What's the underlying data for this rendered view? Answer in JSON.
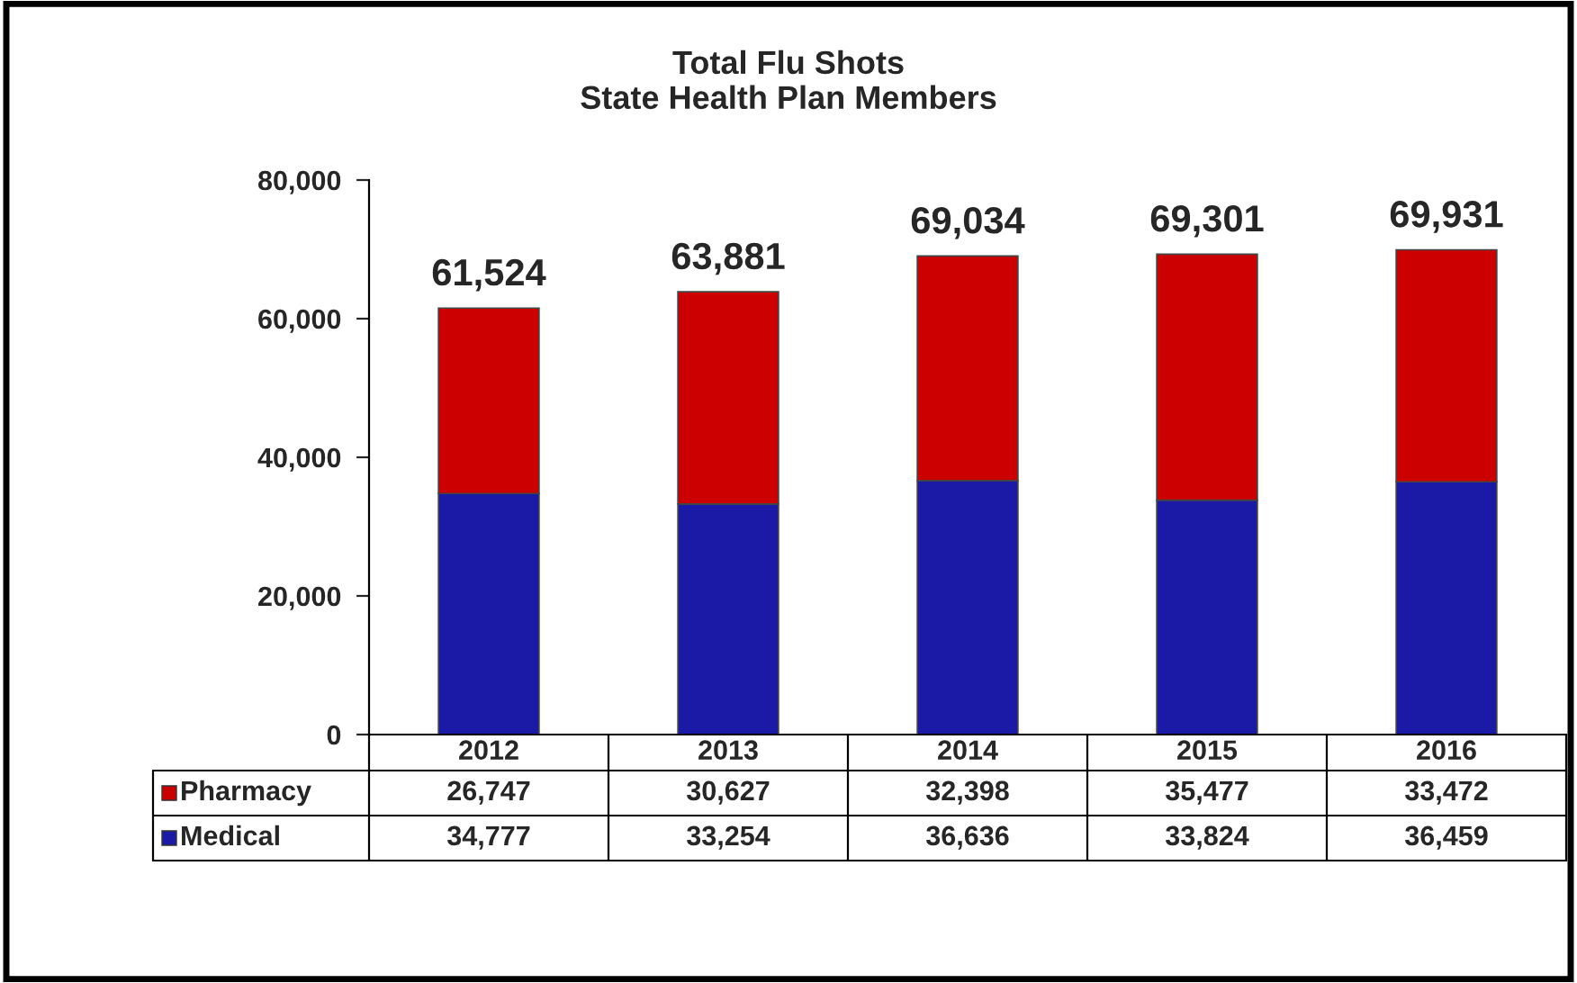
{
  "chart_data": {
    "type": "bar",
    "title": "Total Flu Shots\nState Health Plan Members",
    "categories": [
      "2012",
      "2013",
      "2014",
      "2015",
      "2016"
    ],
    "stacked": true,
    "series": [
      {
        "name": "Medical",
        "color": "#1a1aa6",
        "values": [
          34777,
          33254,
          36636,
          33824,
          36459
        ],
        "value_labels": [
          "34,777",
          "33,254",
          "36,636",
          "33,824",
          "36,459"
        ]
      },
      {
        "name": "Pharmacy",
        "color": "#cc0000",
        "values": [
          26747,
          30627,
          32398,
          35477,
          33472
        ],
        "value_labels": [
          "26,747",
          "30,627",
          "32,398",
          "35,477",
          "33,472"
        ]
      }
    ],
    "totals": [
      "61,524",
      "63,881",
      "69,034",
      "69,301",
      "69,931"
    ],
    "ylim": [
      0,
      80000
    ],
    "yticks": [
      {
        "value": 0,
        "label": "0"
      },
      {
        "value": 20000,
        "label": "20,000"
      },
      {
        "value": 40000,
        "label": "40,000"
      },
      {
        "value": 60000,
        "label": "60,000"
      },
      {
        "value": 80000,
        "label": "80,000"
      }
    ],
    "grid": false,
    "legend": "bottom left"
  }
}
